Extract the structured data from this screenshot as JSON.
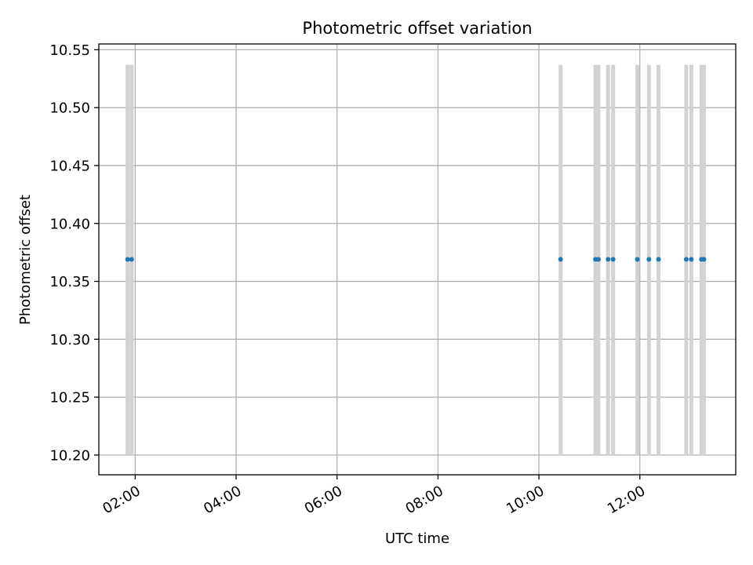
{
  "chart_data": {
    "type": "scatter",
    "title": "Photometric offset variation",
    "xlabel": "UTC time",
    "ylabel": "Photometric offset",
    "x_unit": "hours",
    "xlim": [
      1.28,
      13.9
    ],
    "ylim": [
      10.183,
      10.555
    ],
    "x_ticks": [
      {
        "value": 2,
        "label": "02:00"
      },
      {
        "value": 4,
        "label": "04:00"
      },
      {
        "value": 6,
        "label": "06:00"
      },
      {
        "value": 8,
        "label": "08:00"
      },
      {
        "value": 10,
        "label": "10:00"
      },
      {
        "value": 12,
        "label": "12:00"
      }
    ],
    "y_ticks": [
      {
        "value": 10.2,
        "label": "10.20"
      },
      {
        "value": 10.25,
        "label": "10.25"
      },
      {
        "value": 10.3,
        "label": "10.30"
      },
      {
        "value": 10.35,
        "label": "10.35"
      },
      {
        "value": 10.4,
        "label": "10.40"
      },
      {
        "value": 10.45,
        "label": "10.45"
      },
      {
        "value": 10.5,
        "label": "10.50"
      },
      {
        "value": 10.55,
        "label": "10.55"
      }
    ],
    "grid": true,
    "bands_range": [
      10.2,
      10.537
    ],
    "bands_x": [
      1.85,
      1.93,
      10.43,
      11.12,
      11.18,
      11.37,
      11.47,
      11.95,
      12.18,
      12.37,
      12.92,
      13.02,
      13.22,
      13.27
    ],
    "points": {
      "x": [
        1.85,
        1.93,
        10.43,
        11.12,
        11.18,
        11.37,
        11.47,
        11.95,
        12.18,
        12.37,
        12.92,
        13.02,
        13.22,
        13.27
      ],
      "y": [
        10.369,
        10.369,
        10.369,
        10.369,
        10.369,
        10.369,
        10.369,
        10.369,
        10.369,
        10.369,
        10.369,
        10.369,
        10.369,
        10.369
      ]
    },
    "colors": {
      "points": "#1f77b4",
      "bands": "#d3d3d3",
      "grid": "#b0b0b0",
      "axes": "#000000"
    }
  }
}
